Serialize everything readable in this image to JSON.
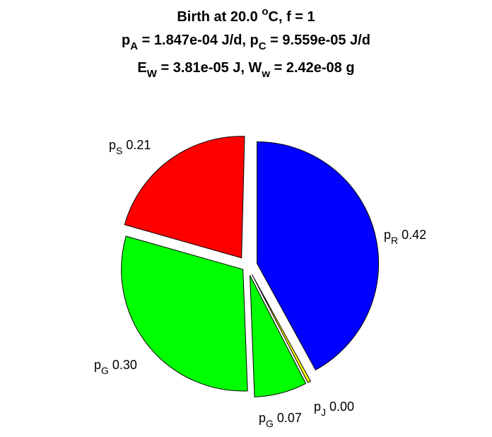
{
  "chart_data": {
    "type": "pie",
    "title_lines": [
      [
        {
          "t": "Birth at 20.0 "
        },
        {
          "t": "o",
          "sup": true
        },
        {
          "t": "C, f = 1"
        }
      ],
      [
        {
          "t": "p"
        },
        {
          "t": "A",
          "sub": true
        },
        {
          "t": " = 1.847e-04 J/d, p"
        },
        {
          "t": "C",
          "sub": true
        },
        {
          "t": " = 9.559e-05 J/d"
        }
      ],
      [
        {
          "t": "E"
        },
        {
          "t": "W",
          "sub": true
        },
        {
          "t": " = 3.81e-05 J, W"
        },
        {
          "t": "w",
          "sub": true
        },
        {
          "t": " = 2.42e-08 g"
        }
      ]
    ],
    "start_angle_deg": 90,
    "direction": "clockwise",
    "exploded": true,
    "slices": [
      {
        "base": "p",
        "sub": "R",
        "label_value": "0.42",
        "fraction": 0.42,
        "color": "#0000ff"
      },
      {
        "base": "p",
        "sub": "J",
        "label_value": "0.00",
        "fraction": 0.004,
        "color": "#ffff00"
      },
      {
        "base": "p",
        "sub": "G",
        "label_value": "0.07",
        "fraction": 0.07,
        "color": "#00ff00"
      },
      {
        "base": "p",
        "sub": "G",
        "label_value": "0.30",
        "fraction": 0.3,
        "color": "#00ff00"
      },
      {
        "base": "p",
        "sub": "S",
        "label_value": "0.21",
        "fraction": 0.21,
        "color": "#ff0000"
      }
    ]
  }
}
